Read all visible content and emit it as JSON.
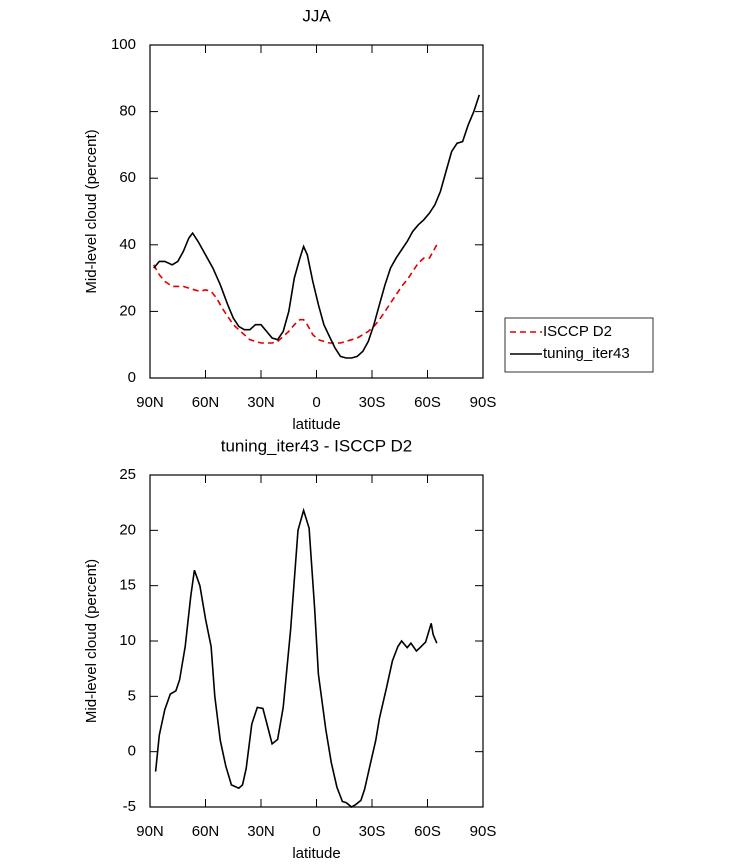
{
  "chart_data": [
    {
      "type": "line",
      "title": "JJA",
      "xlabel": "latitude",
      "ylabel": "Mid-level cloud (percent)",
      "xlim": [
        90,
        -90
      ],
      "ylim": [
        0,
        100
      ],
      "xticks": [
        {
          "value": 90,
          "label": "90N"
        },
        {
          "value": 60,
          "label": "60N"
        },
        {
          "value": 30,
          "label": "30N"
        },
        0,
        {
          "value": -30,
          "label": "30S"
        },
        {
          "value": -60,
          "label": "60S"
        },
        {
          "value": -90,
          "label": "90S"
        }
      ],
      "yticks": [
        0,
        20,
        40,
        60,
        80,
        100
      ],
      "legend": "right",
      "series": [
        {
          "name": "ISCCP D2",
          "color": "#e00000",
          "dash": true,
          "x": [
            88,
            85,
            82,
            78,
            75,
            72,
            69,
            66,
            63,
            60,
            57,
            54,
            51,
            48,
            45,
            42,
            39,
            36,
            33,
            30,
            27,
            24,
            21,
            18,
            15,
            12,
            9,
            7,
            5,
            2,
            -1,
            -4,
            -7,
            -10,
            -13,
            -16,
            -19,
            -22,
            -25,
            -28,
            -31,
            -34,
            -37,
            -40,
            -43,
            -46,
            -49,
            -52,
            -55,
            -58,
            -61,
            -63,
            -65
          ],
          "values": [
            34,
            31,
            29,
            27.5,
            27.5,
            27.5,
            27,
            26.5,
            26,
            26.5,
            26,
            24,
            21,
            18.5,
            16,
            14.5,
            13,
            11.5,
            11,
            10.5,
            10.5,
            10.5,
            11,
            12.5,
            14,
            16,
            17.5,
            17.5,
            16,
            13,
            11.5,
            11,
            10.5,
            10.5,
            10.5,
            11,
            11.5,
            12,
            13,
            14,
            15.5,
            17.5,
            20,
            22.5,
            25,
            27.5,
            29.5,
            32,
            34.5,
            36,
            36,
            38,
            40
          ]
        },
        {
          "name": "tuning_iter43",
          "color": "#000000",
          "dash": false,
          "x": [
            88,
            85,
            82,
            78,
            75,
            72,
            69,
            67,
            64,
            60,
            56,
            52,
            48,
            45,
            42,
            39,
            36,
            33,
            30,
            27,
            24,
            21,
            18,
            15,
            12,
            9,
            7,
            5,
            2,
            -1,
            -4,
            -7,
            -10,
            -13,
            -16,
            -19,
            -22,
            -25,
            -28,
            -31,
            -34,
            -37,
            -40,
            -43,
            -46,
            -49,
            -52,
            -55,
            -58,
            -61,
            -64,
            -67,
            -70,
            -73,
            -76,
            -79,
            -82,
            -85,
            -88
          ],
          "values": [
            33,
            35,
            35,
            34,
            35,
            38,
            42,
            43.5,
            41,
            37,
            33,
            28,
            22,
            18,
            15.5,
            14.5,
            14.5,
            16,
            16,
            14,
            12,
            11.5,
            14,
            20,
            30,
            36,
            39.5,
            37,
            29,
            22,
            16,
            12.5,
            9,
            6.5,
            6,
            6,
            6.5,
            8,
            11,
            16,
            22,
            28,
            33,
            36,
            38.5,
            41,
            44,
            46,
            47.5,
            49.5,
            52,
            56,
            62,
            68,
            70.5,
            71,
            76,
            80,
            85
          ]
        }
      ]
    },
    {
      "type": "line",
      "title": "tuning_iter43 - ISCCP D2",
      "xlabel": "latitude",
      "ylabel": "Mid-level cloud (percent)",
      "xlim": [
        90,
        -90
      ],
      "ylim": [
        -5,
        25
      ],
      "xticks": [
        {
          "value": 90,
          "label": "90N"
        },
        {
          "value": 60,
          "label": "60N"
        },
        {
          "value": 30,
          "label": "30N"
        },
        0,
        {
          "value": -30,
          "label": "30S"
        },
        {
          "value": -60,
          "label": "60S"
        },
        {
          "value": -90,
          "label": "90S"
        }
      ],
      "yticks": [
        -5,
        0,
        5,
        10,
        15,
        20,
        25
      ],
      "series": [
        {
          "color": "#000000",
          "dash": false,
          "x": [
            87,
            85,
            82,
            79,
            76,
            74,
            71,
            68,
            66,
            63,
            60,
            57,
            55,
            52,
            49,
            46,
            42,
            40,
            38,
            35,
            32,
            29,
            26,
            24,
            21,
            18,
            14,
            10,
            7,
            4,
            1,
            -1,
            -5,
            -8,
            -11,
            -14,
            -16,
            -19,
            -21,
            -24,
            -26,
            -29,
            -32,
            -34,
            -38,
            -41,
            -44,
            -46,
            -49,
            -51,
            -54,
            -56,
            -59,
            -62,
            -63,
            -65
          ],
          "values": [
            -1.8,
            1.5,
            3.8,
            5.2,
            5.5,
            6.5,
            9.5,
            14,
            16.4,
            15,
            12,
            9.5,
            5,
            1,
            -1.3,
            -3,
            -3.3,
            -3,
            -1.5,
            2.5,
            4,
            3.9,
            2,
            0.7,
            1.1,
            4,
            11,
            20,
            21.8,
            20.2,
            13,
            7,
            2,
            -1,
            -3.2,
            -4.5,
            -4.6,
            -5,
            -4.8,
            -4.4,
            -3.4,
            -1.2,
            1,
            3,
            5.9,
            8.2,
            9.5,
            10,
            9.4,
            9.8,
            9.1,
            9.4,
            9.9,
            11.6,
            10.6,
            9.8
          ]
        }
      ]
    }
  ]
}
